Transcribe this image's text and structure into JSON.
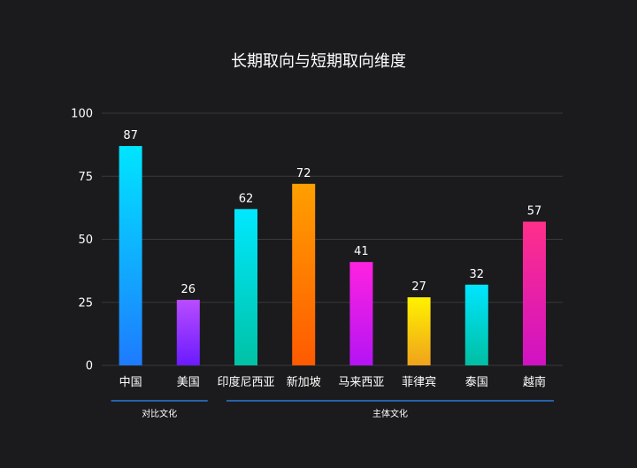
{
  "chart_data": {
    "type": "bar",
    "title": "长期取向与短期取向维度",
    "xlabel": "",
    "ylabel": "",
    "ylim": [
      0,
      100
    ],
    "yticks": [
      0,
      25,
      50,
      75,
      100
    ],
    "grid": true,
    "categories": [
      "中国",
      "美国",
      "印度尼西亚",
      "新加坡",
      "马来西亚",
      "菲律宾",
      "泰国",
      "越南"
    ],
    "values": [
      87,
      26,
      62,
      72,
      41,
      27,
      32,
      57
    ],
    "bar_gradients": [
      [
        "#00e5ff",
        "#1e7bff"
      ],
      [
        "#b94cff",
        "#6a1bff"
      ],
      [
        "#00e8ff",
        "#00c2a5"
      ],
      [
        "#ff9f00",
        "#ff5a00"
      ],
      [
        "#ff22e0",
        "#b414f5"
      ],
      [
        "#fff200",
        "#f0a21c"
      ],
      [
        "#00e5ff",
        "#00bfa2"
      ],
      [
        "#ff2f8a",
        "#d012c4"
      ]
    ],
    "groups": [
      {
        "label": "对比文化",
        "from": 0,
        "to": 1
      },
      {
        "label": "主体文化",
        "from": 2,
        "to": 7
      }
    ]
  }
}
